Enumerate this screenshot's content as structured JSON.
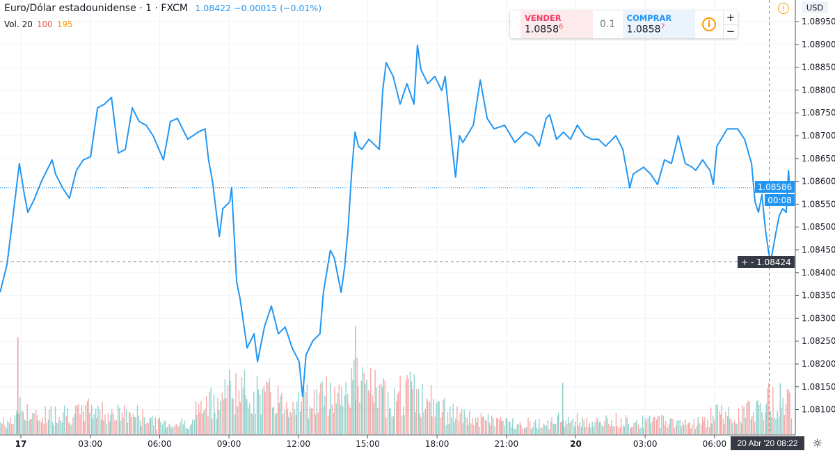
{
  "header": {
    "symbol": "Euro/Dólar estadounidense · 1 · FXCM",
    "last": "1.08422",
    "change": "−0.00015 (−0.01%)",
    "volume_label": "Vol. 20",
    "volume_value_1": "100",
    "volume_value_2": "195"
  },
  "trade_panel": {
    "sell_label": "VENDER",
    "sell_price": "1.0858",
    "sell_pip": "6",
    "quantity": "0.1",
    "buy_label": "COMPRAR",
    "buy_price": "1.0858",
    "buy_pip": "7",
    "info_icon": "i",
    "plus": "+",
    "minus": "−"
  },
  "price_axis": {
    "currency": "USD",
    "last_price_badge": "1.08586",
    "countdown_badge": "00:08",
    "crosshair_badge": "+ - 1.08424",
    "warning_icon": "!"
  },
  "time_axis": {
    "crosshair_label": "20 Abr '20   08:22",
    "settings_icon": "☼"
  },
  "colors": {
    "line": "#2196f3",
    "up_volume": "#26a69a",
    "down_volume": "#ef5350",
    "volume_label_1": "#ef5350",
    "volume_label_2": "#ff9800",
    "sell": "#f23d6a",
    "buy": "#2196f3"
  },
  "chart_data": {
    "type": "line",
    "title": "Euro/Dólar estadounidense · 1 · FXCM",
    "ylim": [
      1.0808,
      1.0898
    ],
    "yticks": [
      "1.08950",
      "1.08900",
      "1.08850",
      "1.08800",
      "1.08750",
      "1.08700",
      "1.08650",
      "1.08600",
      "1.08550",
      "1.08500",
      "1.08450",
      "1.08400",
      "1.08350",
      "1.08300",
      "1.08250",
      "1.08200",
      "1.08150",
      "1.08100"
    ],
    "xticks": [
      {
        "label": "17",
        "t": "17 00:00"
      },
      {
        "label": "03:00",
        "t": "17 03:00"
      },
      {
        "label": "06:00",
        "t": "17 06:00"
      },
      {
        "label": "09:00",
        "t": "17 09:00"
      },
      {
        "label": "12:00",
        "t": "17 12:00"
      },
      {
        "label": "15:00",
        "t": "17 15:00"
      },
      {
        "label": "18:00",
        "t": "17 18:00"
      },
      {
        "label": "21:00",
        "t": "17 21:00"
      },
      {
        "label": "20",
        "t": "20 00:00"
      },
      {
        "label": "03:00",
        "t": "20 03:00"
      },
      {
        "label": "06:00",
        "t": "20 06:00"
      }
    ],
    "grid": true,
    "last_price": 1.08586,
    "crosshair": {
      "time": "20 08:22",
      "price": 1.08424
    },
    "series": [
      {
        "points": [
          [
            "16 23:06",
            1.08357
          ],
          [
            "16 23:24",
            1.08418
          ],
          [
            "16 23:38",
            1.08513
          ],
          [
            "16 23:56",
            1.08639
          ],
          [
            "17 00:09",
            1.08571
          ],
          [
            "17 00:18",
            1.08532
          ],
          [
            "17 00:36",
            1.08563
          ],
          [
            "17 00:54",
            1.08601
          ],
          [
            "17 01:21",
            1.08647
          ],
          [
            "17 01:30",
            1.08616
          ],
          [
            "17 01:48",
            1.08586
          ],
          [
            "17 02:06",
            1.08563
          ],
          [
            "17 02:24",
            1.08624
          ],
          [
            "17 02:42",
            1.08647
          ],
          [
            "17 03:01",
            1.08654
          ],
          [
            "17 03:19",
            1.08761
          ],
          [
            "17 03:37",
            1.08769
          ],
          [
            "17 03:55",
            1.08784
          ],
          [
            "17 04:13",
            1.08662
          ],
          [
            "17 04:31",
            1.0867
          ],
          [
            "17 04:49",
            1.08761
          ],
          [
            "17 05:07",
            1.08731
          ],
          [
            "17 05:25",
            1.08723
          ],
          [
            "17 05:43",
            1.087
          ],
          [
            "17 06:10",
            1.08647
          ],
          [
            "17 06:28",
            1.08731
          ],
          [
            "17 06:46",
            1.08738
          ],
          [
            "17 07:13",
            1.08692
          ],
          [
            "17 07:40",
            1.08708
          ],
          [
            "17 07:58",
            1.08715
          ],
          [
            "17 08:07",
            1.08647
          ],
          [
            "17 08:17",
            1.08601
          ],
          [
            "17 08:26",
            1.0854
          ],
          [
            "17 08:35",
            1.08479
          ],
          [
            "17 08:44",
            1.0854
          ],
          [
            "17 09:02",
            1.08555
          ],
          [
            "17 09:07",
            1.08586
          ],
          [
            "17 09:20",
            1.0838
          ],
          [
            "17 09:29",
            1.08342
          ],
          [
            "17 09:47",
            1.08235
          ],
          [
            "17 10:05",
            1.08266
          ],
          [
            "17 10:14",
            1.08205
          ],
          [
            "17 10:32",
            1.08281
          ],
          [
            "17 10:50",
            1.08327
          ],
          [
            "17 11:08",
            1.08266
          ],
          [
            "17 11:26",
            1.08281
          ],
          [
            "17 11:44",
            1.08235
          ],
          [
            "17 12:02",
            1.08205
          ],
          [
            "17 12:11",
            1.08129
          ],
          [
            "17 12:20",
            1.0822
          ],
          [
            "17 12:38",
            1.08251
          ],
          [
            "17 12:56",
            1.08266
          ],
          [
            "17 13:05",
            1.08357
          ],
          [
            "17 13:23",
            1.08449
          ],
          [
            "17 13:33",
            1.08433
          ],
          [
            "17 13:51",
            1.08357
          ],
          [
            "17 14:00",
            1.08411
          ],
          [
            "17 14:09",
            1.08494
          ],
          [
            "17 14:18",
            1.08616
          ],
          [
            "17 14:27",
            1.08708
          ],
          [
            "17 14:36",
            1.08677
          ],
          [
            "17 14:45",
            1.0867
          ],
          [
            "17 15:03",
            1.08692
          ],
          [
            "17 15:30",
            1.0867
          ],
          [
            "17 15:39",
            1.08799
          ],
          [
            "17 15:48",
            1.0886
          ],
          [
            "17 16:06",
            1.0883
          ],
          [
            "17 16:24",
            1.08769
          ],
          [
            "17 16:42",
            1.08814
          ],
          [
            "17 17:00",
            1.08769
          ],
          [
            "17 17:09",
            1.08898
          ],
          [
            "17 17:18",
            1.08845
          ],
          [
            "17 17:36",
            1.08814
          ],
          [
            "17 17:54",
            1.0883
          ],
          [
            "17 18:12",
            1.08799
          ],
          [
            "17 18:21",
            1.0883
          ],
          [
            "17 18:39",
            1.08677
          ],
          [
            "17 18:48",
            1.08609
          ],
          [
            "17 18:58",
            1.087
          ],
          [
            "17 19:07",
            1.08685
          ],
          [
            "17 19:34",
            1.08723
          ],
          [
            "17 19:52",
            1.08822
          ],
          [
            "17 20:10",
            1.08738
          ],
          [
            "17 20:28",
            1.08715
          ],
          [
            "17 20:55",
            1.08723
          ],
          [
            "19 21:22",
            1.08685
          ],
          [
            "19 21:49",
            1.08708
          ],
          [
            "19 22:07",
            1.087
          ],
          [
            "19 22:25",
            1.08677
          ],
          [
            "19 22:43",
            1.08738
          ],
          [
            "19 22:52",
            1.08746
          ],
          [
            "19 23:10",
            1.08692
          ],
          [
            "19 23:28",
            1.08708
          ],
          [
            "19 23:46",
            1.08692
          ],
          [
            "20 00:04",
            1.08723
          ],
          [
            "20 00:23",
            1.087
          ],
          [
            "20 00:41",
            1.08692
          ],
          [
            "20 00:59",
            1.08692
          ],
          [
            "20 01:17",
            1.08677
          ],
          [
            "20 01:44",
            1.087
          ],
          [
            "20 02:02",
            1.0867
          ],
          [
            "20 02:20",
            1.08586
          ],
          [
            "20 02:29",
            1.08616
          ],
          [
            "20 02:56",
            1.08631
          ],
          [
            "20 03:14",
            1.08616
          ],
          [
            "20 03:32",
            1.08593
          ],
          [
            "20 03:50",
            1.08647
          ],
          [
            "20 04:08",
            1.08639
          ],
          [
            "20 04:26",
            1.087
          ],
          [
            "20 04:44",
            1.08639
          ],
          [
            "20 05:02",
            1.08631
          ],
          [
            "20 05:11",
            1.08624
          ],
          [
            "20 05:29",
            1.08647
          ],
          [
            "20 05:48",
            1.08624
          ],
          [
            "20 05:57",
            1.08593
          ],
          [
            "20 06:06",
            1.08677
          ],
          [
            "20 06:33",
            1.08715
          ],
          [
            "20 07:00",
            1.08715
          ],
          [
            "20 07:18",
            1.08692
          ],
          [
            "20 07:36",
            1.08639
          ],
          [
            "20 07:45",
            1.08555
          ],
          [
            "20 07:54",
            1.08532
          ],
          [
            "20 08:03",
            1.08571
          ],
          [
            "20 08:12",
            1.08494
          ],
          [
            "20 08:21",
            1.08441
          ],
          [
            "20 08:26",
            1.08426
          ],
          [
            "20 08:39",
            1.08487
          ],
          [
            "20 08:48",
            1.08525
          ],
          [
            "20 08:57",
            1.0854
          ],
          [
            "20 09:06",
            1.08532
          ],
          [
            "20 09:12",
            1.08624
          ],
          [
            "20 09:15",
            1.08586
          ]
        ]
      }
    ],
    "volume_relative": [
      13,
      29,
      19,
      23,
      26,
      23,
      29,
      26,
      23,
      23,
      19,
      13,
      12,
      13,
      29,
      39,
      52,
      48,
      45,
      42,
      35,
      42,
      39,
      45,
      48,
      61,
      52,
      42,
      45,
      48,
      39,
      29,
      23,
      19,
      16,
      16,
      13,
      13,
      12,
      13,
      16,
      16,
      13,
      14,
      16,
      14,
      14,
      16,
      14,
      13,
      14,
      23,
      23,
      26,
      32,
      39,
      39
    ],
    "volume_spikes_relative": [
      90,
      100,
      48
    ]
  }
}
